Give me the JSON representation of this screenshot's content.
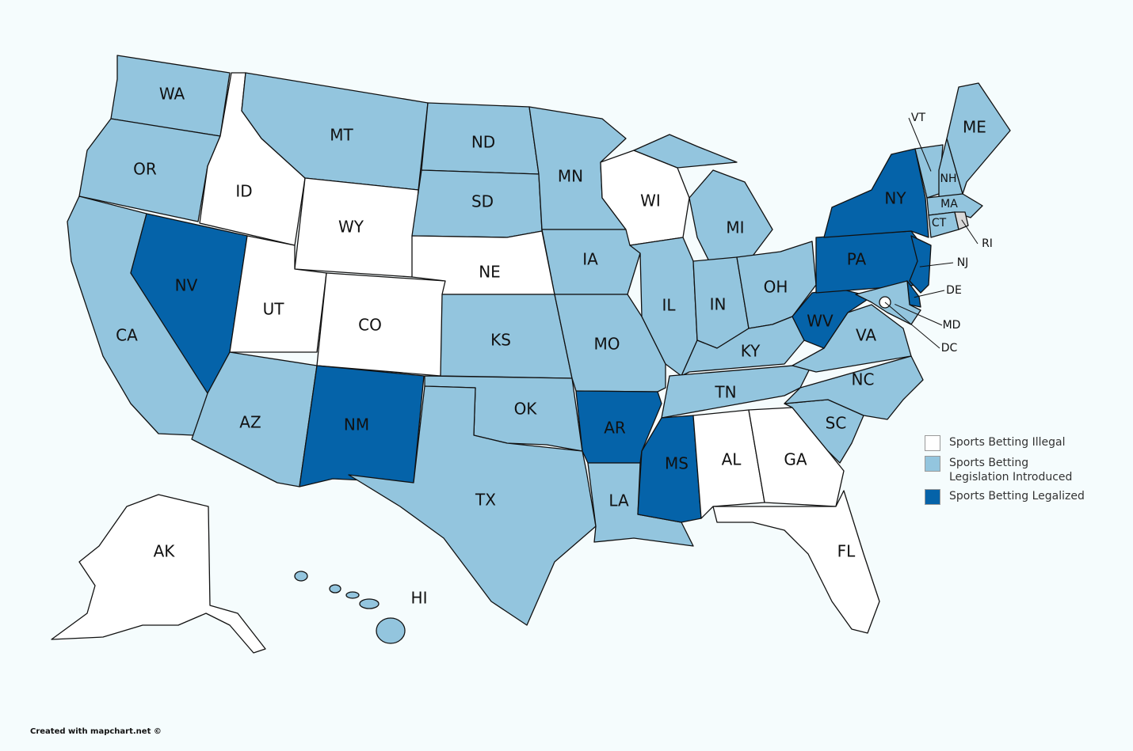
{
  "colors": {
    "background": "#f5fcfd",
    "illegal": "#ffffff",
    "introduced": "#93c5de",
    "legalized": "#0563a9",
    "no_data": "#d9d9d9",
    "outline": "#111111"
  },
  "legend": [
    {
      "key": "illegal",
      "label": "Sports Betting Illegal"
    },
    {
      "key": "introduced",
      "label": "Sports Betting Legislation Introduced"
    },
    {
      "key": "legalized",
      "label": "Sports Betting Legalized"
    }
  ],
  "states": [
    {
      "abbr": "WA",
      "status": "introduced"
    },
    {
      "abbr": "OR",
      "status": "introduced"
    },
    {
      "abbr": "CA",
      "status": "introduced"
    },
    {
      "abbr": "NV",
      "status": "legalized"
    },
    {
      "abbr": "ID",
      "status": "illegal"
    },
    {
      "abbr": "MT",
      "status": "introduced"
    },
    {
      "abbr": "WY",
      "status": "illegal"
    },
    {
      "abbr": "UT",
      "status": "illegal"
    },
    {
      "abbr": "CO",
      "status": "illegal"
    },
    {
      "abbr": "AZ",
      "status": "introduced"
    },
    {
      "abbr": "NM",
      "status": "legalized"
    },
    {
      "abbr": "ND",
      "status": "introduced"
    },
    {
      "abbr": "SD",
      "status": "introduced"
    },
    {
      "abbr": "NE",
      "status": "illegal"
    },
    {
      "abbr": "KS",
      "status": "introduced"
    },
    {
      "abbr": "OK",
      "status": "introduced"
    },
    {
      "abbr": "TX",
      "status": "introduced"
    },
    {
      "abbr": "MN",
      "status": "introduced"
    },
    {
      "abbr": "IA",
      "status": "introduced"
    },
    {
      "abbr": "MO",
      "status": "introduced"
    },
    {
      "abbr": "AR",
      "status": "legalized"
    },
    {
      "abbr": "LA",
      "status": "introduced"
    },
    {
      "abbr": "WI",
      "status": "illegal"
    },
    {
      "abbr": "MI",
      "status": "introduced"
    },
    {
      "abbr": "IL",
      "status": "introduced"
    },
    {
      "abbr": "IN",
      "status": "introduced"
    },
    {
      "abbr": "OH",
      "status": "introduced"
    },
    {
      "abbr": "KY",
      "status": "introduced"
    },
    {
      "abbr": "TN",
      "status": "introduced"
    },
    {
      "abbr": "MS",
      "status": "legalized"
    },
    {
      "abbr": "AL",
      "status": "illegal"
    },
    {
      "abbr": "GA",
      "status": "illegal"
    },
    {
      "abbr": "FL",
      "status": "illegal"
    },
    {
      "abbr": "SC",
      "status": "introduced"
    },
    {
      "abbr": "NC",
      "status": "introduced"
    },
    {
      "abbr": "VA",
      "status": "introduced"
    },
    {
      "abbr": "WV",
      "status": "legalized"
    },
    {
      "abbr": "PA",
      "status": "legalized"
    },
    {
      "abbr": "NY",
      "status": "legalized"
    },
    {
      "abbr": "NJ",
      "status": "legalized"
    },
    {
      "abbr": "DE",
      "status": "legalized"
    },
    {
      "abbr": "MD",
      "status": "introduced"
    },
    {
      "abbr": "DC",
      "status": "illegal"
    },
    {
      "abbr": "VT",
      "status": "introduced"
    },
    {
      "abbr": "NH",
      "status": "introduced"
    },
    {
      "abbr": "ME",
      "status": "introduced"
    },
    {
      "abbr": "MA",
      "status": "introduced"
    },
    {
      "abbr": "CT",
      "status": "introduced"
    },
    {
      "abbr": "RI",
      "status": "no_data"
    },
    {
      "abbr": "AK",
      "status": "illegal"
    },
    {
      "abbr": "HI",
      "status": "introduced"
    }
  ],
  "credit": "Created with mapchart.net ©"
}
